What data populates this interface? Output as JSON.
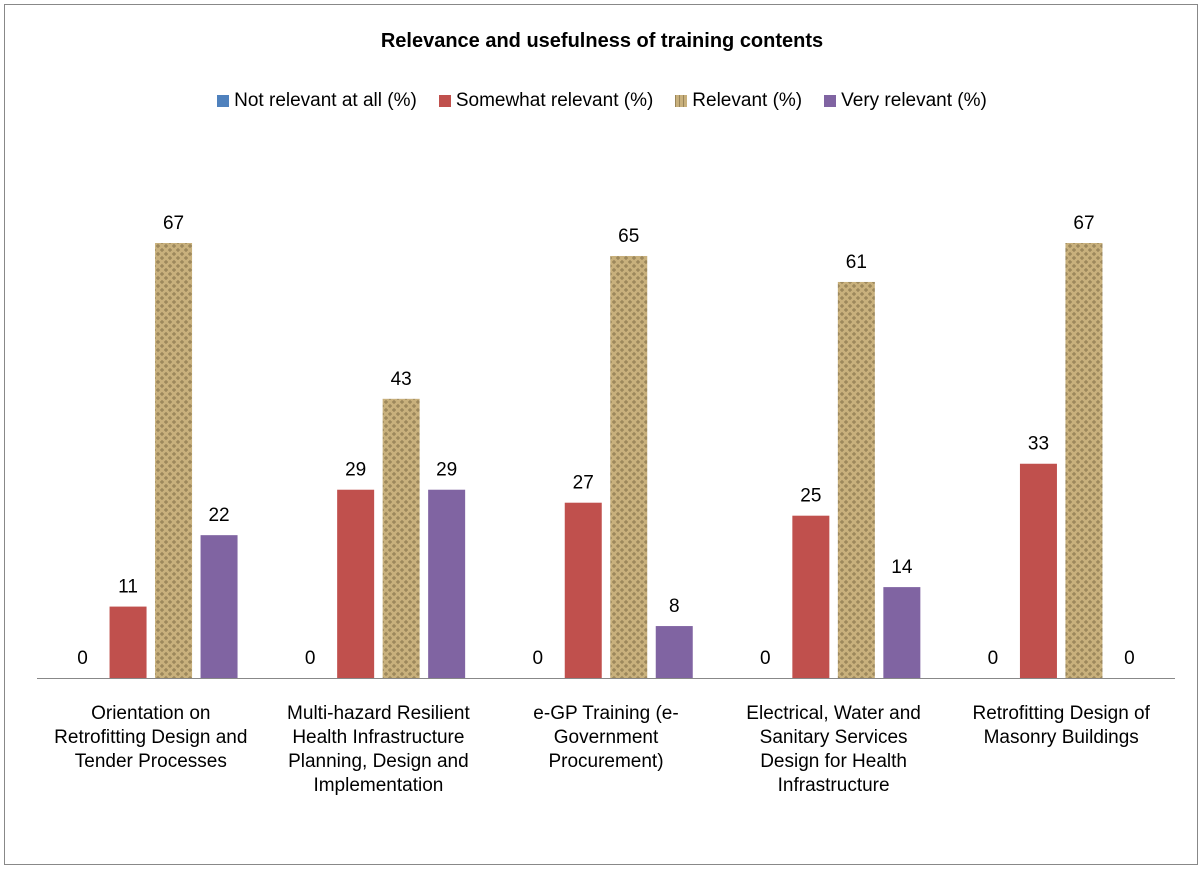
{
  "chart_data": {
    "type": "bar",
    "title": "Relevance and usefulness of training contents",
    "categories": [
      "Orientation on Retrofitting Design and Tender Processes",
      "Multi-hazard Resilient Health Infrastructure Planning, Design and Implementation",
      "e-GP Training (e-Government Procurement)",
      "Electrical, Water and Sanitary Services Design for Health Infrastructure",
      "Retrofitting Design of Masonry Buildings"
    ],
    "series": [
      {
        "name": "Not relevant at all (%)",
        "color": "#4f81bd",
        "values": [
          0,
          0,
          0,
          0,
          0
        ]
      },
      {
        "name": "Somewhat relevant (%)",
        "color": "#c0504d",
        "values": [
          11,
          29,
          27,
          25,
          33
        ]
      },
      {
        "name": "Relevant (%)",
        "color": "#c8b07c",
        "values": [
          67,
          43,
          65,
          61,
          67
        ]
      },
      {
        "name": "Very relevant (%)",
        "color": "#8064a2",
        "values": [
          22,
          29,
          8,
          14,
          0
        ]
      }
    ]
  }
}
